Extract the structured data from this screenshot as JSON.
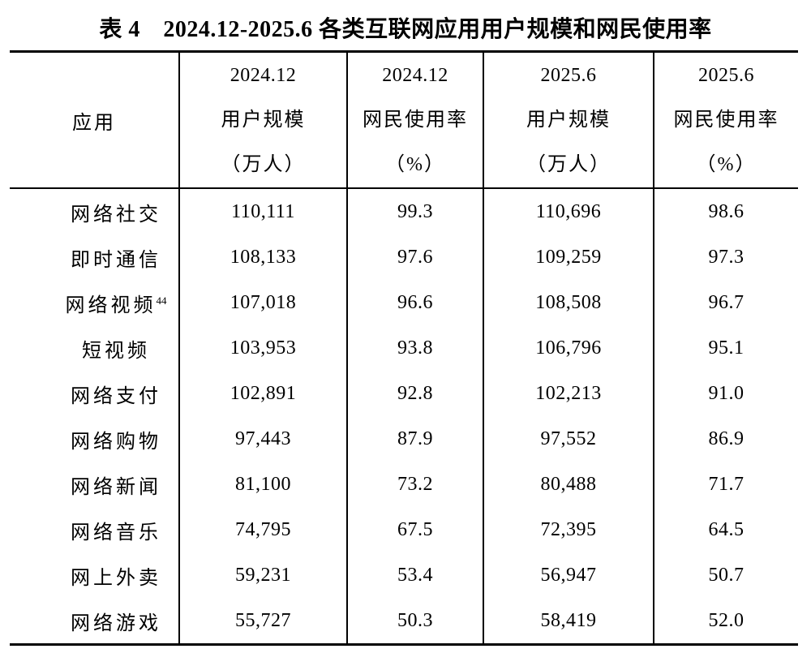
{
  "page": {
    "title": "表 4　2024.12-2025.6 各类互联网应用用户规模和网民使用率"
  },
  "table": {
    "header": {
      "app": "应用",
      "columns": [
        {
          "period": "2024.12",
          "metric": "用户规模",
          "unit": "（万人）"
        },
        {
          "period": "2024.12",
          "metric": "网民使用率",
          "unit": "（%）"
        },
        {
          "period": "2025.6",
          "metric": "用户规模",
          "unit": "（万人）"
        },
        {
          "period": "2025.6",
          "metric": "网民使用率",
          "unit": "（%）"
        }
      ]
    },
    "rows": [
      {
        "app": "网络社交",
        "footnote": "",
        "user_2024": "110,111",
        "rate_2024": "99.3",
        "user_2025": "110,696",
        "rate_2025": "98.6"
      },
      {
        "app": "即时通信",
        "footnote": "",
        "user_2024": "108,133",
        "rate_2024": "97.6",
        "user_2025": "109,259",
        "rate_2025": "97.3"
      },
      {
        "app": "网络视频",
        "footnote": "44",
        "user_2024": "107,018",
        "rate_2024": "96.6",
        "user_2025": "108,508",
        "rate_2025": "96.7"
      },
      {
        "app": "短视频",
        "footnote": "",
        "user_2024": "103,953",
        "rate_2024": "93.8",
        "user_2025": "106,796",
        "rate_2025": "95.1"
      },
      {
        "app": "网络支付",
        "footnote": "",
        "user_2024": "102,891",
        "rate_2024": "92.8",
        "user_2025": "102,213",
        "rate_2025": "91.0"
      },
      {
        "app": "网络购物",
        "footnote": "",
        "user_2024": "97,443",
        "rate_2024": "87.9",
        "user_2025": "97,552",
        "rate_2025": "86.9"
      },
      {
        "app": "网络新闻",
        "footnote": "",
        "user_2024": "81,100",
        "rate_2024": "73.2",
        "user_2025": "80,488",
        "rate_2025": "71.7"
      },
      {
        "app": "网络音乐",
        "footnote": "",
        "user_2024": "74,795",
        "rate_2024": "67.5",
        "user_2025": "72,395",
        "rate_2025": "64.5"
      },
      {
        "app": "网上外卖",
        "footnote": "",
        "user_2024": "59,231",
        "rate_2024": "53.4",
        "user_2025": "56,947",
        "rate_2025": "50.7"
      },
      {
        "app": "网络游戏",
        "footnote": "",
        "user_2024": "55,727",
        "rate_2024": "50.3",
        "user_2025": "58,419",
        "rate_2025": "52.0"
      }
    ]
  },
  "colors": {
    "text": "#000000",
    "border": "#000000",
    "background": "#ffffff"
  }
}
